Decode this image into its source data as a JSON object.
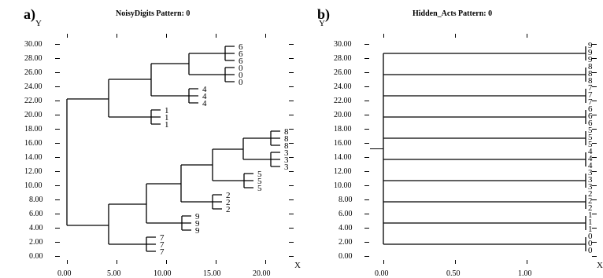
{
  "panels": [
    {
      "label": "a)",
      "title": "NoisyDigits Pattern: 0",
      "y_axis_label": "Y",
      "x_axis_label": "X",
      "y_ticks": [
        "0.00",
        "2.00",
        "4.00",
        "6.00",
        "8.00",
        "10.00",
        "12.00",
        "14.00",
        "16.00",
        "18.00",
        "20.00",
        "22.00",
        "24.00",
        "26.00",
        "28.00",
        "30.00"
      ],
      "x_ticks": [
        "0.00",
        "5.00",
        "10.00",
        "15.00",
        "20.00"
      ],
      "leaves": [
        "6",
        "6",
        "6",
        "0",
        "0",
        "0",
        "4",
        "4",
        "4",
        "1",
        "1",
        "1",
        "8",
        "8",
        "8",
        "3",
        "3",
        "3",
        "5",
        "5",
        "5",
        "2",
        "2",
        "2",
        "9",
        "9",
        "9",
        "7",
        "7",
        "7"
      ]
    },
    {
      "label": "b)",
      "title": "Hidden_Acts Pattern: 0",
      "y_axis_label": "Y",
      "x_axis_label": "X",
      "y_ticks": [
        "0.00",
        "2.00",
        "4.00",
        "6.00",
        "8.00",
        "10.00",
        "12.00",
        "14.00",
        "16.00",
        "18.00",
        "20.00",
        "22.00",
        "24.00",
        "26.00",
        "28.00",
        "30.00"
      ],
      "x_ticks": [
        "0.00",
        "0.50",
        "1.00"
      ],
      "leaves": [
        "9",
        "9",
        "9",
        "8",
        "8",
        "8",
        "7",
        "7",
        "7",
        "6",
        "6",
        "6",
        "5",
        "5",
        "5",
        "4",
        "4",
        "4",
        "3",
        "3",
        "3",
        "2",
        "2",
        "2",
        "1",
        "1",
        "1",
        "0",
        "0",
        "0"
      ]
    }
  ],
  "chart_data": [
    {
      "type": "dendrogram",
      "title": "NoisyDigits Pattern: 0",
      "ylim": [
        0,
        30
      ],
      "xlim": [
        0,
        22
      ],
      "leaf_order": [
        "6",
        "6",
        "6",
        "0",
        "0",
        "0",
        "4",
        "4",
        "4",
        "1",
        "1",
        "1",
        "8",
        "8",
        "8",
        "3",
        "3",
        "3",
        "5",
        "5",
        "5",
        "2",
        "2",
        "2",
        "9",
        "9",
        "9",
        "7",
        "7",
        "7"
      ],
      "merges": [
        {
          "members": [
            "6",
            "6",
            "6"
          ],
          "height": 16.0
        },
        {
          "members": [
            "0",
            "0",
            "0"
          ],
          "height": 16.0
        },
        {
          "members": [
            "6",
            "0"
          ],
          "height": 12.3
        },
        {
          "members": [
            "4",
            "4",
            "4"
          ],
          "height": 12.3
        },
        {
          "members": [
            "6",
            "0",
            "4"
          ],
          "height": 8.5
        },
        {
          "members": [
            "1",
            "1",
            "1"
          ],
          "height": 8.6
        },
        {
          "members": [
            "6",
            "0",
            "4",
            "1"
          ],
          "height": 4.2
        },
        {
          "members": [
            "8",
            "8",
            "8"
          ],
          "height": 20.6
        },
        {
          "members": [
            "3",
            "3",
            "3"
          ],
          "height": 20.6
        },
        {
          "members": [
            "8",
            "3"
          ],
          "height": 17.8
        },
        {
          "members": [
            "5",
            "5",
            "5"
          ],
          "height": 18.2
        },
        {
          "members": [
            "8",
            "3",
            "5"
          ],
          "height": 14.8
        },
        {
          "members": [
            "2",
            "2",
            "2"
          ],
          "height": 14.6
        },
        {
          "members": [
            "8",
            "3",
            "5",
            "2"
          ],
          "height": 11.5
        },
        {
          "members": [
            "9",
            "9",
            "9"
          ],
          "height": 11.6
        },
        {
          "members": [
            "8",
            "3",
            "5",
            "2",
            "9"
          ],
          "height": 8.1
        },
        {
          "members": [
            "7",
            "7",
            "7"
          ],
          "height": 8.1
        },
        {
          "members": [
            "8",
            "3",
            "5",
            "2",
            "9",
            "7"
          ],
          "height": 4.3
        },
        {
          "members": [
            "all"
          ],
          "height": 0.0
        }
      ]
    },
    {
      "type": "dendrogram",
      "title": "Hidden_Acts Pattern: 0",
      "ylim": [
        0,
        30
      ],
      "xlim": [
        0,
        1.5
      ],
      "leaf_order": [
        "9",
        "9",
        "9",
        "8",
        "8",
        "8",
        "7",
        "7",
        "7",
        "6",
        "6",
        "6",
        "5",
        "5",
        "5",
        "4",
        "4",
        "4",
        "3",
        "3",
        "3",
        "2",
        "2",
        "2",
        "1",
        "1",
        "1",
        "0",
        "0",
        "0"
      ],
      "merges": [
        {
          "members": [
            "9",
            "9",
            "9"
          ],
          "height": 1.5
        },
        {
          "members": [
            "8",
            "8",
            "8"
          ],
          "height": 1.5
        },
        {
          "members": [
            "7",
            "7",
            "7"
          ],
          "height": 1.5
        },
        {
          "members": [
            "6",
            "6",
            "6"
          ],
          "height": 1.5
        },
        {
          "members": [
            "5",
            "5",
            "5"
          ],
          "height": 1.5
        },
        {
          "members": [
            "4",
            "4",
            "4"
          ],
          "height": 1.5
        },
        {
          "members": [
            "3",
            "3",
            "3"
          ],
          "height": 1.5
        },
        {
          "members": [
            "2",
            "2",
            "2"
          ],
          "height": 1.5
        },
        {
          "members": [
            "1",
            "1",
            "1"
          ],
          "height": 1.5
        },
        {
          "members": [
            "0",
            "0",
            "0"
          ],
          "height": 1.5
        },
        {
          "members": [
            "all"
          ],
          "height": 0.0
        }
      ]
    }
  ]
}
